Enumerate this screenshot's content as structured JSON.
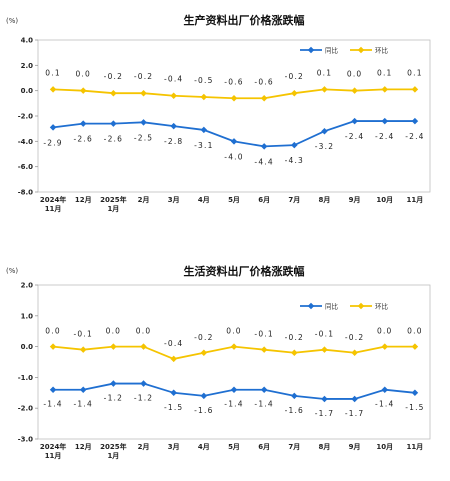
{
  "chart_data": [
    {
      "type": "line",
      "title": "生产资料出厂价格涨跌幅",
      "unit": "(%)",
      "categories": [
        [
          "2024年",
          "11月"
        ],
        [
          "12月"
        ],
        [
          "2025年",
          "1月"
        ],
        [
          "2月"
        ],
        [
          "3月"
        ],
        [
          "4月"
        ],
        [
          "5月"
        ],
        [
          "6月"
        ],
        [
          "7月"
        ],
        [
          "8月"
        ],
        [
          "9月"
        ],
        [
          "10月"
        ],
        [
          "11月"
        ]
      ],
      "ylim": [
        -8.0,
        4.0
      ],
      "yticks": [
        "4.0",
        "2.0",
        "0.0",
        "-2.0",
        "-4.0",
        "-6.0",
        "-8.0"
      ],
      "grid": false,
      "legend_position": "top-right",
      "series": [
        {
          "name": "同比",
          "color": "#1f6fd1",
          "values": [
            -2.9,
            -2.6,
            -2.6,
            -2.5,
            -2.8,
            -3.1,
            -4.0,
            -4.4,
            -4.3,
            -3.2,
            -2.4,
            -2.4,
            -2.4
          ],
          "labels": [
            "-2.9",
            "-2.6",
            "-2.6",
            "-2.5",
            "-2.8",
            "-3.1",
            "-4.0",
            "-4.4",
            "-4.3",
            "-3.2",
            "-2.4",
            "-2.4",
            "-2.4"
          ]
        },
        {
          "name": "环比",
          "color": "#f5c400",
          "values": [
            0.1,
            0.0,
            -0.2,
            -0.2,
            -0.4,
            -0.5,
            -0.6,
            -0.6,
            -0.2,
            0.1,
            0.0,
            0.1,
            0.1
          ],
          "labels": [
            "0.1",
            "0.0",
            "-0.2",
            "-0.2",
            "-0.4",
            "-0.5",
            "-0.6",
            "-0.6",
            "-0.2",
            "0.1",
            "0.0",
            "0.1",
            "0.1"
          ]
        }
      ]
    },
    {
      "type": "line",
      "title": "生活资料出厂价格涨跌幅",
      "unit": "(%)",
      "categories": [
        [
          "2024年",
          "11月"
        ],
        [
          "12月"
        ],
        [
          "2025年",
          "1月"
        ],
        [
          "2月"
        ],
        [
          "3月"
        ],
        [
          "4月"
        ],
        [
          "5月"
        ],
        [
          "6月"
        ],
        [
          "7月"
        ],
        [
          "8月"
        ],
        [
          "9月"
        ],
        [
          "10月"
        ],
        [
          "11月"
        ]
      ],
      "ylim": [
        -3.0,
        2.0
      ],
      "yticks": [
        "2.0",
        "1.0",
        "0.0",
        "-1.0",
        "-2.0",
        "-3.0"
      ],
      "grid": false,
      "legend_position": "top-right",
      "series": [
        {
          "name": "同比",
          "color": "#1f6fd1",
          "values": [
            -1.4,
            -1.4,
            -1.2,
            -1.2,
            -1.5,
            -1.6,
            -1.4,
            -1.4,
            -1.6,
            -1.7,
            -1.7,
            -1.4,
            -1.5
          ],
          "labels": [
            "-1.4",
            "-1.4",
            "-1.2",
            "-1.2",
            "-1.5",
            "-1.6",
            "-1.4",
            "-1.4",
            "-1.6",
            "-1.7",
            "-1.7",
            "-1.4",
            "-1.5"
          ]
        },
        {
          "name": "环比",
          "color": "#f5c400",
          "values": [
            0.0,
            -0.1,
            0.0,
            0.0,
            -0.4,
            -0.2,
            0.0,
            -0.1,
            -0.2,
            -0.1,
            -0.2,
            0.0,
            0.0
          ],
          "labels": [
            "0.0",
            "-0.1",
            "0.0",
            "0.0",
            "-0.4",
            "-0.2",
            "0.0",
            "-0.1",
            "-0.2",
            "-0.1",
            "-0.2",
            "0.0",
            "0.0"
          ]
        }
      ]
    }
  ]
}
